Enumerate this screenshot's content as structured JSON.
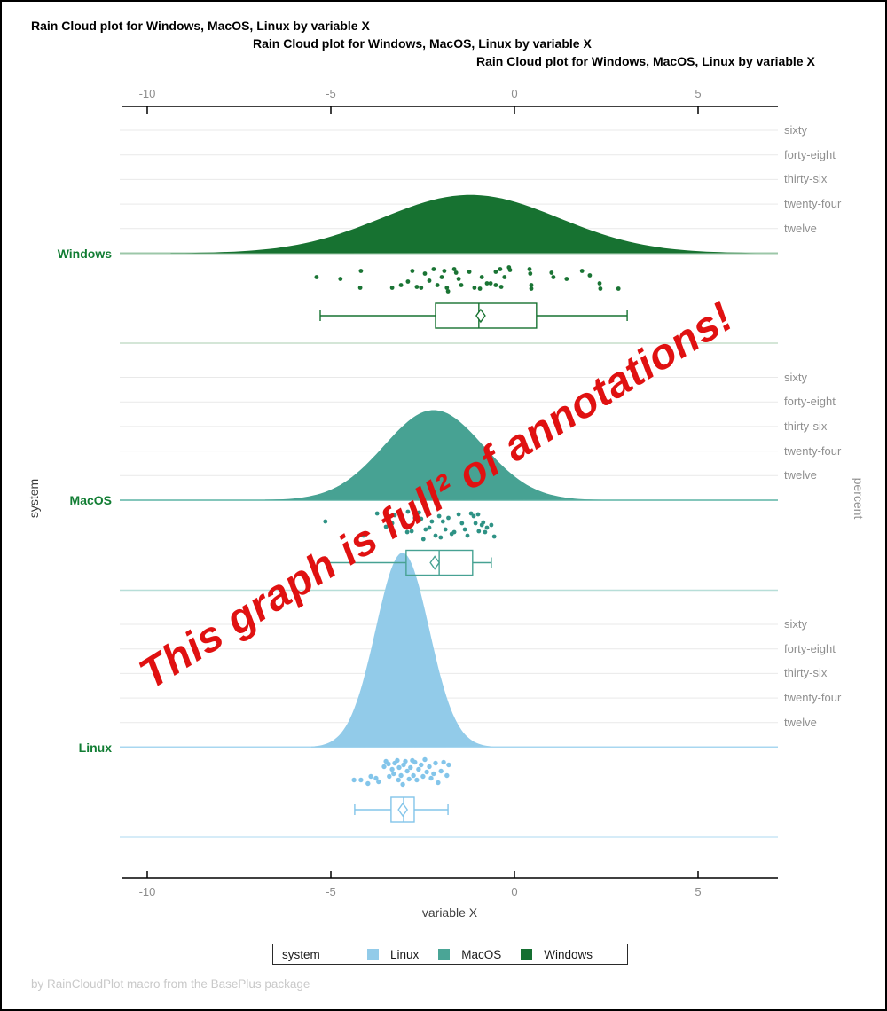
{
  "titles": [
    "Rain Cloud plot for Windows, MacOS, Linux by variable X",
    "Rain Cloud plot for Windows, MacOS, Linux by variable X",
    "Rain Cloud plot for Windows, MacOS, Linux by variable X"
  ],
  "top_axis": {
    "ticks": [
      "-10",
      "-5",
      "0",
      "5"
    ]
  },
  "bottom_axis": {
    "ticks": [
      "-10",
      "-5",
      "0",
      "5"
    ],
    "label": "variable X"
  },
  "left_axis_label": "system",
  "right_axis_label": "percent",
  "group_label_color": "#117d33",
  "annotation": {
    "text": "This graph is full² of annotations!",
    "color": "#e01111"
  },
  "legend": {
    "title": "system",
    "items": [
      {
        "label": "Linux",
        "color": "#92cbe9"
      },
      {
        "label": "MacOS",
        "color": "#4aa596"
      },
      {
        "label": "Windows",
        "color": "#156f31"
      }
    ]
  },
  "footer": "by RainCloudPlot macro from the BasePlus package",
  "chart_data": {
    "type": "raincloud",
    "x_axis": {
      "label": "variable X",
      "ticks": [
        -10,
        -5,
        0,
        5
      ],
      "range": [
        -10.75,
        7.2
      ]
    },
    "y_axis_right": {
      "label": "percent",
      "ticks_per_group": [
        60,
        48,
        36,
        24,
        12
      ],
      "tick_labels": [
        "sixty",
        "forty-eight",
        "thirty-six",
        "twenty-four",
        "twelve"
      ]
    },
    "groups": [
      "Windows",
      "MacOS",
      "Linux"
    ],
    "series": [
      {
        "name": "Windows",
        "color": "#177231",
        "dot_color": "#1a7434",
        "baseline_color": "#9cc7a8",
        "separator_color": "#c6ddca",
        "density": {
          "mean": -1.2,
          "sd": 2.4,
          "peak_percent": 28.5
        },
        "box": {
          "whisker_low": -5.29,
          "q1": -2.15,
          "median": -0.97,
          "q3": 0.6,
          "whisker_high": 3.07,
          "mean": -0.92
        },
        "points": [
          [
            -5.39,
            27
          ],
          [
            -4.74,
            29
          ],
          [
            -4.18,
            20
          ],
          [
            -4.2,
            39
          ],
          [
            -3.33,
            39
          ],
          [
            -3.09,
            36
          ],
          [
            -2.9,
            32
          ],
          [
            -2.78,
            20
          ],
          [
            -2.66,
            38
          ],
          [
            -2.54,
            39
          ],
          [
            -2.44,
            23
          ],
          [
            -2.32,
            31
          ],
          [
            -2.2,
            18
          ],
          [
            -2.1,
            36
          ],
          [
            -1.98,
            27
          ],
          [
            -1.91,
            20
          ],
          [
            -1.84,
            39
          ],
          [
            -1.81,
            43
          ],
          [
            -1.64,
            18
          ],
          [
            -1.59,
            22
          ],
          [
            -1.52,
            29
          ],
          [
            -1.45,
            36
          ],
          [
            -1.23,
            21
          ],
          [
            -1.09,
            39
          ],
          [
            -0.94,
            40
          ],
          [
            -0.89,
            27
          ],
          [
            -0.75,
            34
          ],
          [
            -0.65,
            34
          ],
          [
            -0.51,
            36
          ],
          [
            -0.51,
            21
          ],
          [
            -0.39,
            18
          ],
          [
            -0.36,
            38
          ],
          [
            -0.27,
            27
          ],
          [
            -0.15,
            16
          ],
          [
            -0.12,
            19
          ],
          [
            0.41,
            18
          ],
          [
            0.43,
            23
          ],
          [
            0.46,
            36
          ],
          [
            0.46,
            40
          ],
          [
            1.01,
            22
          ],
          [
            1.06,
            27
          ],
          [
            1.42,
            29
          ],
          [
            1.84,
            20
          ],
          [
            2.05,
            25
          ],
          [
            2.32,
            34
          ],
          [
            2.34,
            40
          ],
          [
            2.83,
            40
          ]
        ]
      },
      {
        "name": "MacOS",
        "color": "#47a293",
        "dot_color": "#2e9285",
        "baseline_color": "#84c6bb",
        "separator_color": "#b7ded8",
        "density": {
          "mean": -2.2,
          "sd": 1.35,
          "peak_percent": 44
        },
        "box": {
          "whisker_low": -5.1,
          "q1": -2.95,
          "median": -2.05,
          "q3": -1.14,
          "whisker_high": -0.63,
          "mean": -2.17
        },
        "points": [
          [
            -5.15,
            24
          ],
          [
            -4.11,
            40
          ],
          [
            -3.74,
            15
          ],
          [
            -3.5,
            30
          ],
          [
            -3.43,
            18
          ],
          [
            -3.33,
            26
          ],
          [
            -3.26,
            17
          ],
          [
            -3.14,
            15
          ],
          [
            -3.07,
            21
          ],
          [
            -2.92,
            36
          ],
          [
            -2.9,
            13
          ],
          [
            -2.8,
            35
          ],
          [
            -2.71,
            20
          ],
          [
            -2.6,
            14
          ],
          [
            -2.54,
            21
          ],
          [
            -2.48,
            44
          ],
          [
            -2.42,
            33
          ],
          [
            -2.32,
            31
          ],
          [
            -2.25,
            24
          ],
          [
            -2.15,
            40
          ],
          [
            -2.05,
            18
          ],
          [
            -2.01,
            42
          ],
          [
            -1.95,
            24
          ],
          [
            -1.88,
            33
          ],
          [
            -1.8,
            20
          ],
          [
            -1.71,
            38
          ],
          [
            -1.64,
            36
          ],
          [
            -1.52,
            16
          ],
          [
            -1.43,
            26
          ],
          [
            -1.35,
            33
          ],
          [
            -1.28,
            40
          ],
          [
            -1.18,
            15
          ],
          [
            -1.11,
            18
          ],
          [
            -1.06,
            26
          ],
          [
            -0.99,
            16
          ],
          [
            -0.97,
            35
          ],
          [
            -0.89,
            28
          ],
          [
            -0.85,
            25
          ],
          [
            -0.8,
            36
          ],
          [
            -0.75,
            31
          ],
          [
            -0.63,
            28
          ],
          [
            -0.55,
            41
          ]
        ]
      },
      {
        "name": "Linux",
        "color": "#92cbe9",
        "dot_color": "#83c5ea",
        "baseline_color": "#a8d7f0",
        "separator_color": "#c9e6f6",
        "density": {
          "mean": -3.05,
          "sd": 0.73,
          "peak_percent": 95
        },
        "box": {
          "whisker_low": -4.35,
          "q1": -3.36,
          "median": -3.02,
          "q3": -2.73,
          "whisker_high": -1.81,
          "mean": -3.04
        },
        "points": [
          [
            -4.37,
            37
          ],
          [
            -4.18,
            37
          ],
          [
            -3.99,
            41
          ],
          [
            -3.91,
            33
          ],
          [
            -3.77,
            35
          ],
          [
            -3.7,
            39
          ],
          [
            -3.55,
            22
          ],
          [
            -3.5,
            16
          ],
          [
            -3.43,
            19
          ],
          [
            -3.41,
            33
          ],
          [
            -3.33,
            25
          ],
          [
            -3.29,
            30
          ],
          [
            -3.26,
            18
          ],
          [
            -3.19,
            15
          ],
          [
            -3.16,
            37
          ],
          [
            -3.14,
            23
          ],
          [
            -3.09,
            32
          ],
          [
            -3.04,
            42
          ],
          [
            -3.02,
            20
          ],
          [
            -2.97,
            16
          ],
          [
            -2.92,
            27
          ],
          [
            -2.87,
            36
          ],
          [
            -2.83,
            23
          ],
          [
            -2.78,
            15
          ],
          [
            -2.75,
            32
          ],
          [
            -2.71,
            17
          ],
          [
            -2.66,
            37
          ],
          [
            -2.61,
            25
          ],
          [
            -2.54,
            20
          ],
          [
            -2.49,
            33
          ],
          [
            -2.44,
            14
          ],
          [
            -2.39,
            28
          ],
          [
            -2.32,
            22
          ],
          [
            -2.27,
            35
          ],
          [
            -2.2,
            30
          ],
          [
            -2.15,
            18
          ],
          [
            -2.08,
            40
          ],
          [
            -2.0,
            27
          ],
          [
            -1.93,
            17
          ],
          [
            -1.84,
            32
          ],
          [
            -1.79,
            20
          ]
        ]
      }
    ]
  }
}
